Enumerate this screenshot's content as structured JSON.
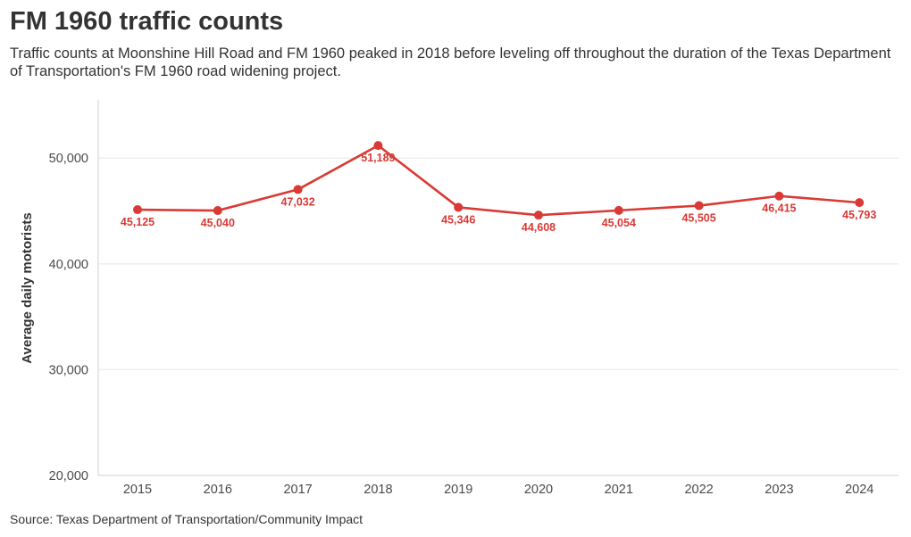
{
  "title": "FM 1960 traffic counts",
  "subtitle": "Traffic counts at Moonshine Hill Road and FM 1960 peaked in 2018 before leveling off throughout the duration of the Texas Department of Transportation's FM 1960 road widening project.",
  "source": "Source: Texas Department of Transportation/Community Impact",
  "colors": {
    "series": "#d93a35",
    "gridline": "#e8e8e8",
    "axis": "#d0d0d0"
  },
  "chart_data": {
    "type": "line",
    "title": "FM 1960 traffic counts",
    "xlabel": "",
    "ylabel": "Average daily motorists",
    "x": [
      "2015",
      "2016",
      "2017",
      "2018",
      "2019",
      "2020",
      "2021",
      "2022",
      "2023",
      "2024"
    ],
    "series": [
      {
        "name": "Average daily motorists",
        "values": [
          45125,
          45040,
          47032,
          51189,
          45346,
          44608,
          45054,
          45505,
          46415,
          45793
        ],
        "labels": [
          "45,125",
          "45,040",
          "47,032",
          "51,189",
          "45,346",
          "44,608",
          "45,054",
          "45,505",
          "46,415",
          "45,793"
        ]
      }
    ],
    "ylim": [
      20000,
      55500
    ],
    "yticks": [
      20000,
      30000,
      40000,
      50000
    ],
    "ytick_labels": [
      "20,000",
      "30,000",
      "40,000",
      "50,000"
    ],
    "grid": true
  }
}
